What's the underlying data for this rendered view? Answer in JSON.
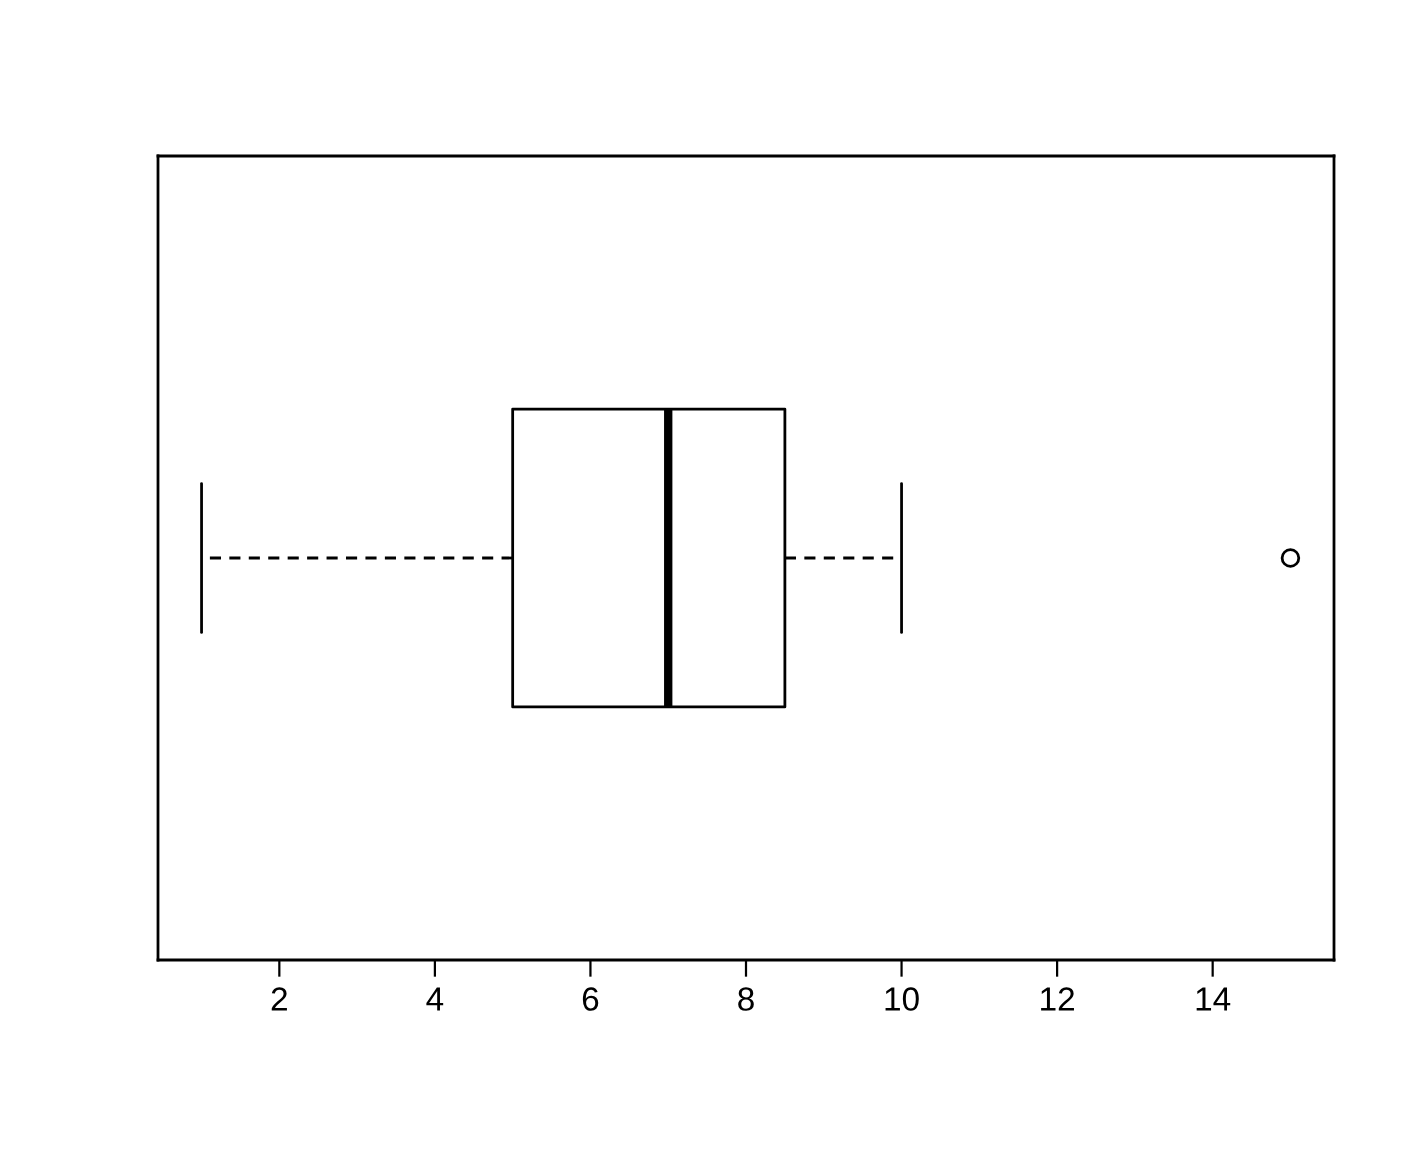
{
  "chart_data": {
    "type": "box",
    "orientation": "horizontal",
    "categories": [
      null
    ],
    "boxes": [
      {
        "low": 1,
        "q1": 5,
        "median": 7,
        "q3": 8.5,
        "high": 10,
        "outliers": [
          15
        ]
      }
    ],
    "xlim": [
      0.44,
      15.56
    ],
    "xticks": [
      2,
      4,
      6,
      8,
      10,
      12,
      14
    ],
    "tick_labels": "x"
  }
}
